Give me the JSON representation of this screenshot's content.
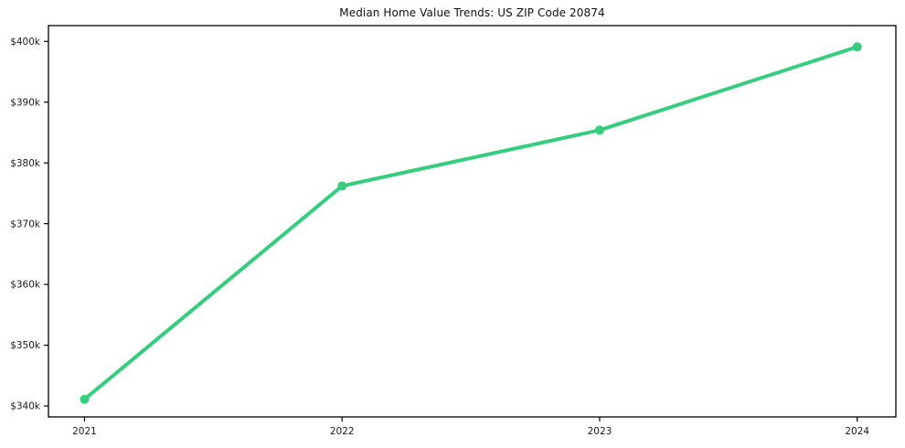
{
  "chart_data": {
    "type": "line",
    "title": "Median Home Value Trends: US ZIP Code 20874",
    "xlabel": "",
    "ylabel": "",
    "x": [
      2021,
      2022,
      2023,
      2024
    ],
    "values": [
      341100,
      376200,
      385400,
      399100
    ],
    "x_tick_labels": [
      "2021",
      "2022",
      "2023",
      "2024"
    ],
    "y_tick_labels": [
      "$340k",
      "$350k",
      "$360k",
      "$370k",
      "$380k",
      "$390k",
      "$400k"
    ],
    "y_tick_values": [
      340000,
      350000,
      360000,
      370000,
      380000,
      390000,
      400000
    ],
    "xlim": [
      2020.86,
      2024.15
    ],
    "ylim": [
      338200,
      402600
    ],
    "line_color": "#35ce7c",
    "marker": "circle",
    "grid": false,
    "legend_position": "none",
    "frame_color": "#000000"
  }
}
